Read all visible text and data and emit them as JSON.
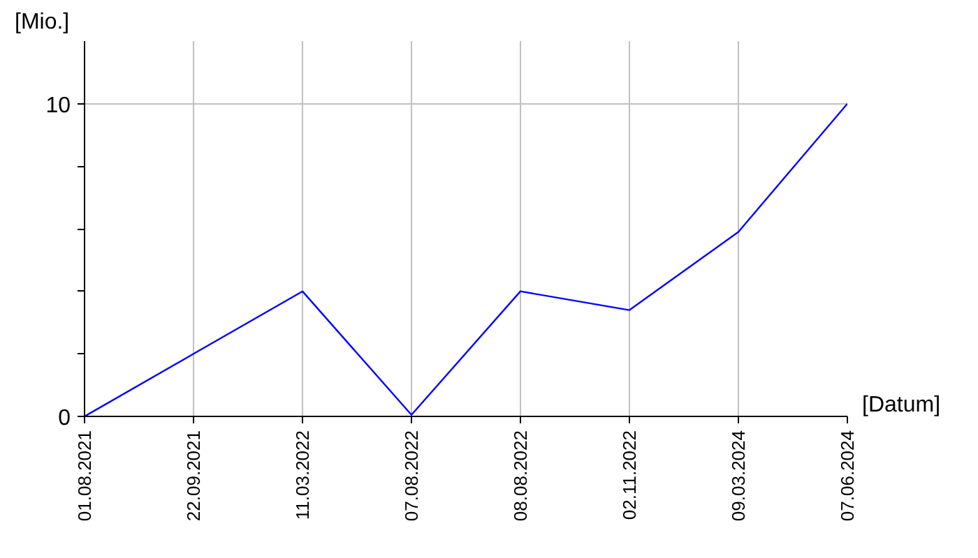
{
  "chart_data": {
    "type": "line",
    "xlabel": "[Datum]",
    "ylabel": "[Mio.]",
    "categories": [
      "01.08.2021",
      "22.09.2021",
      "11.03.2022",
      "07.08.2022",
      "08.08.2022",
      "02.11.2022",
      "09.03.2024",
      "07.06.2024"
    ],
    "series": [
      {
        "color": "#0000ff",
        "values": [
          0,
          2,
          4,
          0.05,
          4,
          3.4,
          5.9,
          10
        ]
      }
    ],
    "ylim": [
      0,
      12
    ],
    "yticks": [
      0,
      {
        "value": 2,
        "label": null
      },
      {
        "value": 4,
        "label": null
      },
      {
        "value": 6,
        "label": null
      },
      {
        "value": 8,
        "label": null
      },
      10
    ],
    "grid": true,
    "marker": "none",
    "line_style": "solid"
  }
}
